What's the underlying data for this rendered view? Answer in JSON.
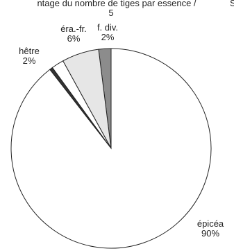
{
  "chart_data": {
    "type": "pie",
    "title": "ntage du nombre de tiges par essence / ",
    "title_suffix": "S",
    "subtitle": "5",
    "slices": [
      {
        "label": "f. div.",
        "percent_label": "2%",
        "value": 2,
        "color": "#8c8c8c"
      },
      {
        "label": "éra.-fr.",
        "percent_label": "6%",
        "value": 6,
        "color": "#e6e6e6"
      },
      {
        "label": "hêtre",
        "percent_label": "2%",
        "value": 2,
        "color": "#ffffff"
      },
      {
        "label": "",
        "percent_label": "",
        "value": 0.5,
        "color": "#333333"
      },
      {
        "label": "épicéa",
        "percent_label": "90%",
        "value": 89.5,
        "color": "#ffffff"
      }
    ]
  }
}
